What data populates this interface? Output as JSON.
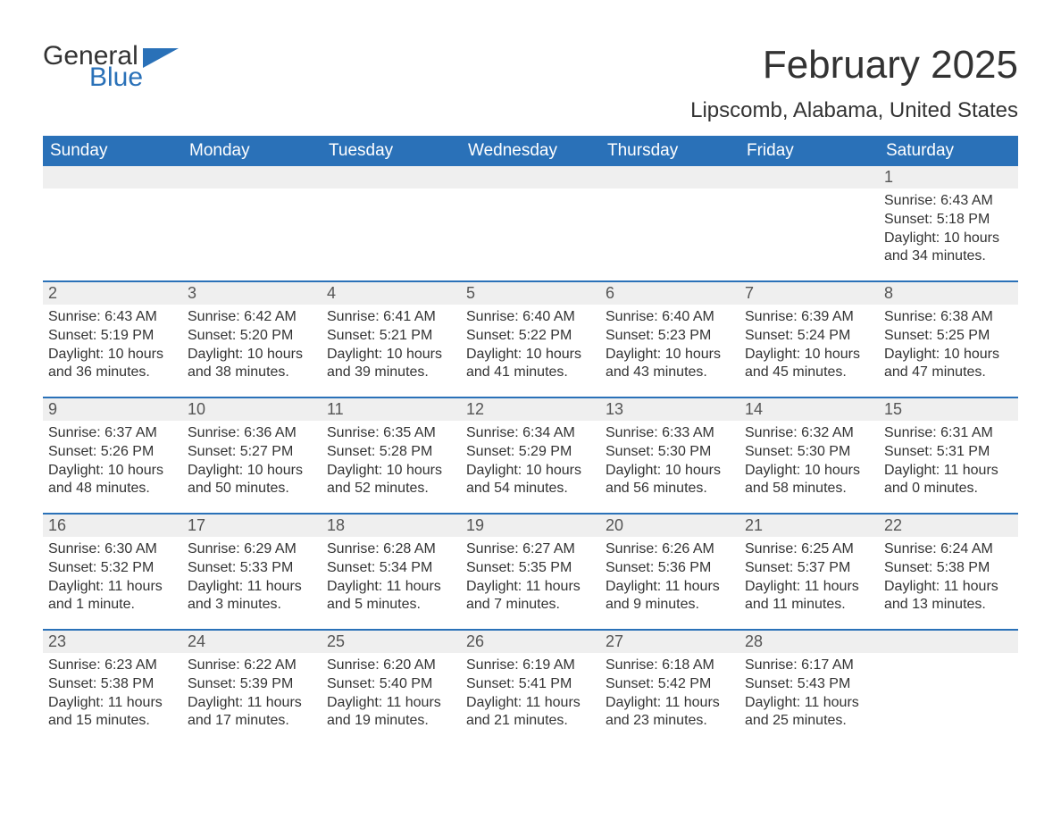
{
  "logo": {
    "word1": "General",
    "word2": "Blue"
  },
  "title": "February 2025",
  "location": "Lipscomb, Alabama, United States",
  "colors": {
    "brand_blue": "#2a71b8",
    "header_bg": "#2a71b8",
    "header_text": "#ffffff",
    "daynum_bg": "#efefef",
    "text": "#333333",
    "background": "#ffffff"
  },
  "day_names": [
    "Sunday",
    "Monday",
    "Tuesday",
    "Wednesday",
    "Thursday",
    "Friday",
    "Saturday"
  ],
  "weeks": [
    [
      {
        "day": "",
        "sunrise": "",
        "sunset": "",
        "daylight": ""
      },
      {
        "day": "",
        "sunrise": "",
        "sunset": "",
        "daylight": ""
      },
      {
        "day": "",
        "sunrise": "",
        "sunset": "",
        "daylight": ""
      },
      {
        "day": "",
        "sunrise": "",
        "sunset": "",
        "daylight": ""
      },
      {
        "day": "",
        "sunrise": "",
        "sunset": "",
        "daylight": ""
      },
      {
        "day": "",
        "sunrise": "",
        "sunset": "",
        "daylight": ""
      },
      {
        "day": "1",
        "sunrise": "Sunrise: 6:43 AM",
        "sunset": "Sunset: 5:18 PM",
        "daylight": "Daylight: 10 hours and 34 minutes."
      }
    ],
    [
      {
        "day": "2",
        "sunrise": "Sunrise: 6:43 AM",
        "sunset": "Sunset: 5:19 PM",
        "daylight": "Daylight: 10 hours and 36 minutes."
      },
      {
        "day": "3",
        "sunrise": "Sunrise: 6:42 AM",
        "sunset": "Sunset: 5:20 PM",
        "daylight": "Daylight: 10 hours and 38 minutes."
      },
      {
        "day": "4",
        "sunrise": "Sunrise: 6:41 AM",
        "sunset": "Sunset: 5:21 PM",
        "daylight": "Daylight: 10 hours and 39 minutes."
      },
      {
        "day": "5",
        "sunrise": "Sunrise: 6:40 AM",
        "sunset": "Sunset: 5:22 PM",
        "daylight": "Daylight: 10 hours and 41 minutes."
      },
      {
        "day": "6",
        "sunrise": "Sunrise: 6:40 AM",
        "sunset": "Sunset: 5:23 PM",
        "daylight": "Daylight: 10 hours and 43 minutes."
      },
      {
        "day": "7",
        "sunrise": "Sunrise: 6:39 AM",
        "sunset": "Sunset: 5:24 PM",
        "daylight": "Daylight: 10 hours and 45 minutes."
      },
      {
        "day": "8",
        "sunrise": "Sunrise: 6:38 AM",
        "sunset": "Sunset: 5:25 PM",
        "daylight": "Daylight: 10 hours and 47 minutes."
      }
    ],
    [
      {
        "day": "9",
        "sunrise": "Sunrise: 6:37 AM",
        "sunset": "Sunset: 5:26 PM",
        "daylight": "Daylight: 10 hours and 48 minutes."
      },
      {
        "day": "10",
        "sunrise": "Sunrise: 6:36 AM",
        "sunset": "Sunset: 5:27 PM",
        "daylight": "Daylight: 10 hours and 50 minutes."
      },
      {
        "day": "11",
        "sunrise": "Sunrise: 6:35 AM",
        "sunset": "Sunset: 5:28 PM",
        "daylight": "Daylight: 10 hours and 52 minutes."
      },
      {
        "day": "12",
        "sunrise": "Sunrise: 6:34 AM",
        "sunset": "Sunset: 5:29 PM",
        "daylight": "Daylight: 10 hours and 54 minutes."
      },
      {
        "day": "13",
        "sunrise": "Sunrise: 6:33 AM",
        "sunset": "Sunset: 5:30 PM",
        "daylight": "Daylight: 10 hours and 56 minutes."
      },
      {
        "day": "14",
        "sunrise": "Sunrise: 6:32 AM",
        "sunset": "Sunset: 5:30 PM",
        "daylight": "Daylight: 10 hours and 58 minutes."
      },
      {
        "day": "15",
        "sunrise": "Sunrise: 6:31 AM",
        "sunset": "Sunset: 5:31 PM",
        "daylight": "Daylight: 11 hours and 0 minutes."
      }
    ],
    [
      {
        "day": "16",
        "sunrise": "Sunrise: 6:30 AM",
        "sunset": "Sunset: 5:32 PM",
        "daylight": "Daylight: 11 hours and 1 minute."
      },
      {
        "day": "17",
        "sunrise": "Sunrise: 6:29 AM",
        "sunset": "Sunset: 5:33 PM",
        "daylight": "Daylight: 11 hours and 3 minutes."
      },
      {
        "day": "18",
        "sunrise": "Sunrise: 6:28 AM",
        "sunset": "Sunset: 5:34 PM",
        "daylight": "Daylight: 11 hours and 5 minutes."
      },
      {
        "day": "19",
        "sunrise": "Sunrise: 6:27 AM",
        "sunset": "Sunset: 5:35 PM",
        "daylight": "Daylight: 11 hours and 7 minutes."
      },
      {
        "day": "20",
        "sunrise": "Sunrise: 6:26 AM",
        "sunset": "Sunset: 5:36 PM",
        "daylight": "Daylight: 11 hours and 9 minutes."
      },
      {
        "day": "21",
        "sunrise": "Sunrise: 6:25 AM",
        "sunset": "Sunset: 5:37 PM",
        "daylight": "Daylight: 11 hours and 11 minutes."
      },
      {
        "day": "22",
        "sunrise": "Sunrise: 6:24 AM",
        "sunset": "Sunset: 5:38 PM",
        "daylight": "Daylight: 11 hours and 13 minutes."
      }
    ],
    [
      {
        "day": "23",
        "sunrise": "Sunrise: 6:23 AM",
        "sunset": "Sunset: 5:38 PM",
        "daylight": "Daylight: 11 hours and 15 minutes."
      },
      {
        "day": "24",
        "sunrise": "Sunrise: 6:22 AM",
        "sunset": "Sunset: 5:39 PM",
        "daylight": "Daylight: 11 hours and 17 minutes."
      },
      {
        "day": "25",
        "sunrise": "Sunrise: 6:20 AM",
        "sunset": "Sunset: 5:40 PM",
        "daylight": "Daylight: 11 hours and 19 minutes."
      },
      {
        "day": "26",
        "sunrise": "Sunrise: 6:19 AM",
        "sunset": "Sunset: 5:41 PM",
        "daylight": "Daylight: 11 hours and 21 minutes."
      },
      {
        "day": "27",
        "sunrise": "Sunrise: 6:18 AM",
        "sunset": "Sunset: 5:42 PM",
        "daylight": "Daylight: 11 hours and 23 minutes."
      },
      {
        "day": "28",
        "sunrise": "Sunrise: 6:17 AM",
        "sunset": "Sunset: 5:43 PM",
        "daylight": "Daylight: 11 hours and 25 minutes."
      },
      {
        "day": "",
        "sunrise": "",
        "sunset": "",
        "daylight": ""
      }
    ]
  ]
}
